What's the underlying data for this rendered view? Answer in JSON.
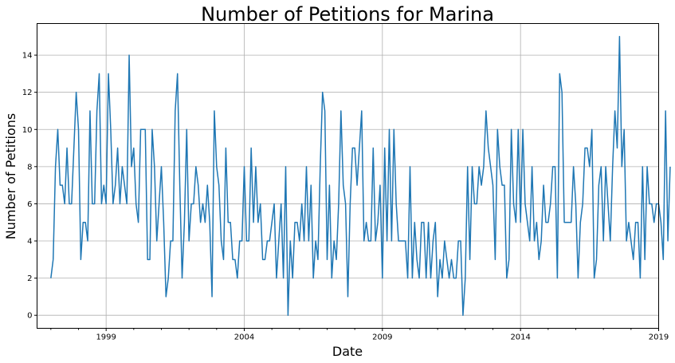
{
  "chart_data": {
    "type": "line",
    "title": "Number of Petitions for Marina",
    "xlabel": "Date",
    "ylabel": "Number of Petitions",
    "xlim": [
      "1996-07",
      "2019-01"
    ],
    "ylim": [
      -0.7,
      15.7
    ],
    "grid": true,
    "x_ticks": [
      "1999",
      "2004",
      "2009",
      "2014",
      "2019"
    ],
    "y_ticks": [
      0,
      2,
      4,
      6,
      8,
      10,
      12,
      14
    ],
    "series": [
      {
        "color": "#1f77b4",
        "start": "1997-01",
        "frequency": "monthly",
        "values": [
          2,
          3,
          8,
          10,
          7,
          7,
          6,
          9,
          6,
          6,
          9,
          12,
          10,
          3,
          5,
          5,
          4,
          11,
          6,
          6,
          11,
          13,
          6,
          7,
          6,
          13,
          10,
          6,
          7,
          9,
          6,
          8,
          7,
          6,
          14,
          8,
          9,
          6,
          5,
          10,
          10,
          10,
          3,
          3,
          10,
          8,
          4,
          6,
          8,
          5,
          1,
          2,
          4,
          4,
          11,
          13,
          7,
          2,
          5,
          10,
          4,
          6,
          6,
          8,
          7,
          5,
          6,
          5,
          7,
          5,
          1,
          11,
          8,
          7,
          4,
          3,
          9,
          5,
          5,
          3,
          3,
          2,
          4,
          4,
          8,
          4,
          4,
          9,
          5,
          8,
          5,
          6,
          3,
          3,
          4,
          4,
          5,
          6,
          2,
          4,
          6,
          2,
          8,
          0,
          4,
          2,
          5,
          5,
          4,
          6,
          4,
          8,
          4,
          7,
          2,
          4,
          3,
          8,
          12,
          11,
          3,
          7,
          2,
          4,
          3,
          6,
          11,
          7,
          6,
          1,
          6,
          9,
          9,
          7,
          9,
          11,
          4,
          5,
          4,
          4,
          9,
          4,
          5,
          7,
          2,
          9,
          4,
          10,
          4,
          10,
          6,
          4,
          4,
          4,
          4,
          2,
          8,
          2,
          5,
          3,
          2,
          5,
          5,
          2,
          5,
          2,
          4,
          5,
          1,
          3,
          2,
          4,
          3,
          2,
          3,
          2,
          2,
          4,
          4,
          0,
          2,
          8,
          3,
          8,
          6,
          6,
          8,
          7,
          8,
          11,
          9,
          8,
          7,
          3,
          10,
          8,
          7,
          7,
          2,
          3,
          10,
          6,
          5,
          10,
          5,
          10,
          6,
          5,
          4,
          8,
          4,
          5,
          3,
          4,
          7,
          5,
          5,
          6,
          8,
          8,
          2,
          13,
          12,
          5,
          5,
          5,
          5,
          8,
          6,
          2,
          5,
          6,
          9,
          9,
          8,
          10,
          2,
          3,
          7,
          8,
          4,
          8,
          6,
          4,
          8,
          11,
          9,
          15,
          8,
          10,
          4,
          5,
          4,
          3,
          5,
          5,
          2,
          8,
          3,
          8,
          6,
          6,
          5,
          6,
          6,
          5,
          3,
          11,
          4,
          8
        ]
      }
    ]
  }
}
